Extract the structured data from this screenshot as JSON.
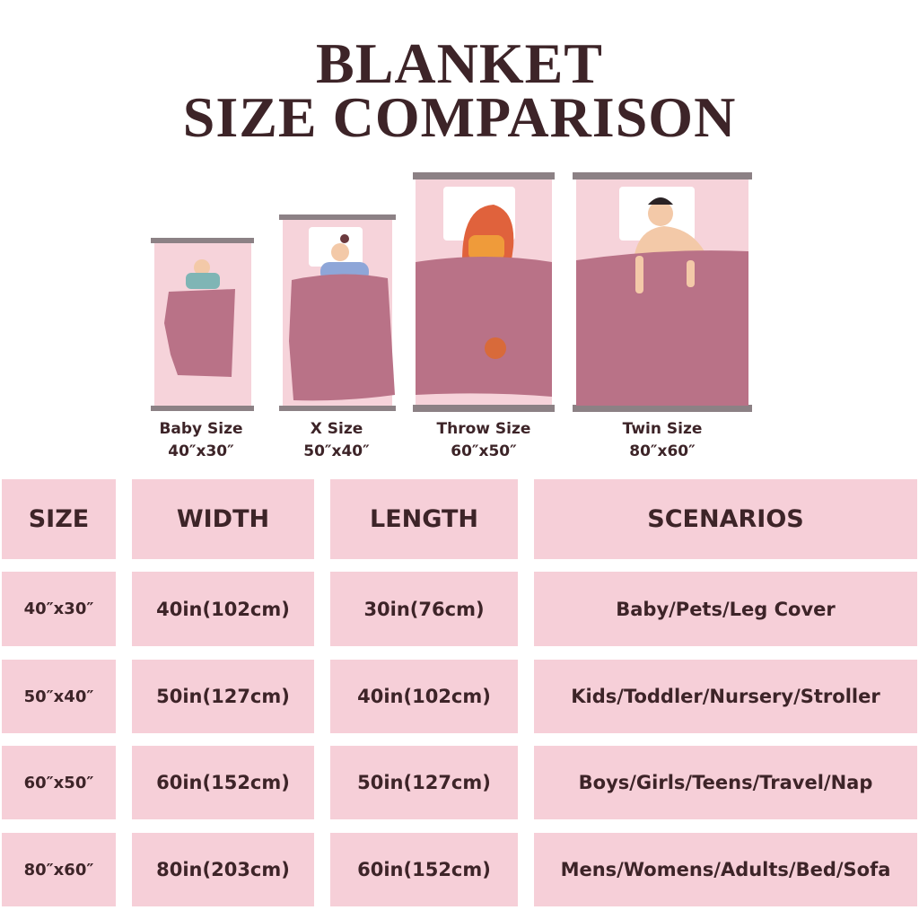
{
  "title": {
    "line1": "BLANKET",
    "line2": "SIZE COMPARISON"
  },
  "colors": {
    "text": "#3d2428",
    "bed": "#f6d3da",
    "blanket": "#b97287",
    "rail": "#8c8185",
    "cell": "#f6cfd8"
  },
  "beds": [
    {
      "name": "Baby Size",
      "size": "40″x30″"
    },
    {
      "name": "X Size",
      "size": "50″x40″"
    },
    {
      "name": "Throw Size",
      "size": "60″x50″"
    },
    {
      "name": "Twin Size",
      "size": "80″x60″"
    }
  ],
  "table": {
    "headers": [
      "SIZE",
      "WIDTH",
      "LENGTH",
      "SCENARIOS"
    ],
    "rows": [
      [
        "40″x30″",
        "40in(102cm)",
        "30in(76cm)",
        "Baby/Pets/Leg Cover"
      ],
      [
        "50″x40″",
        "50in(127cm)",
        "40in(102cm)",
        "Kids/Toddler/Nursery/Stroller"
      ],
      [
        "60″x50″",
        "60in(152cm)",
        "50in(127cm)",
        "Boys/Girls/Teens/Travel/Nap"
      ],
      [
        "80″x60″",
        "80in(203cm)",
        "60in(152cm)",
        "Mens/Womens/Adults/Bed/Sofa"
      ]
    ]
  }
}
